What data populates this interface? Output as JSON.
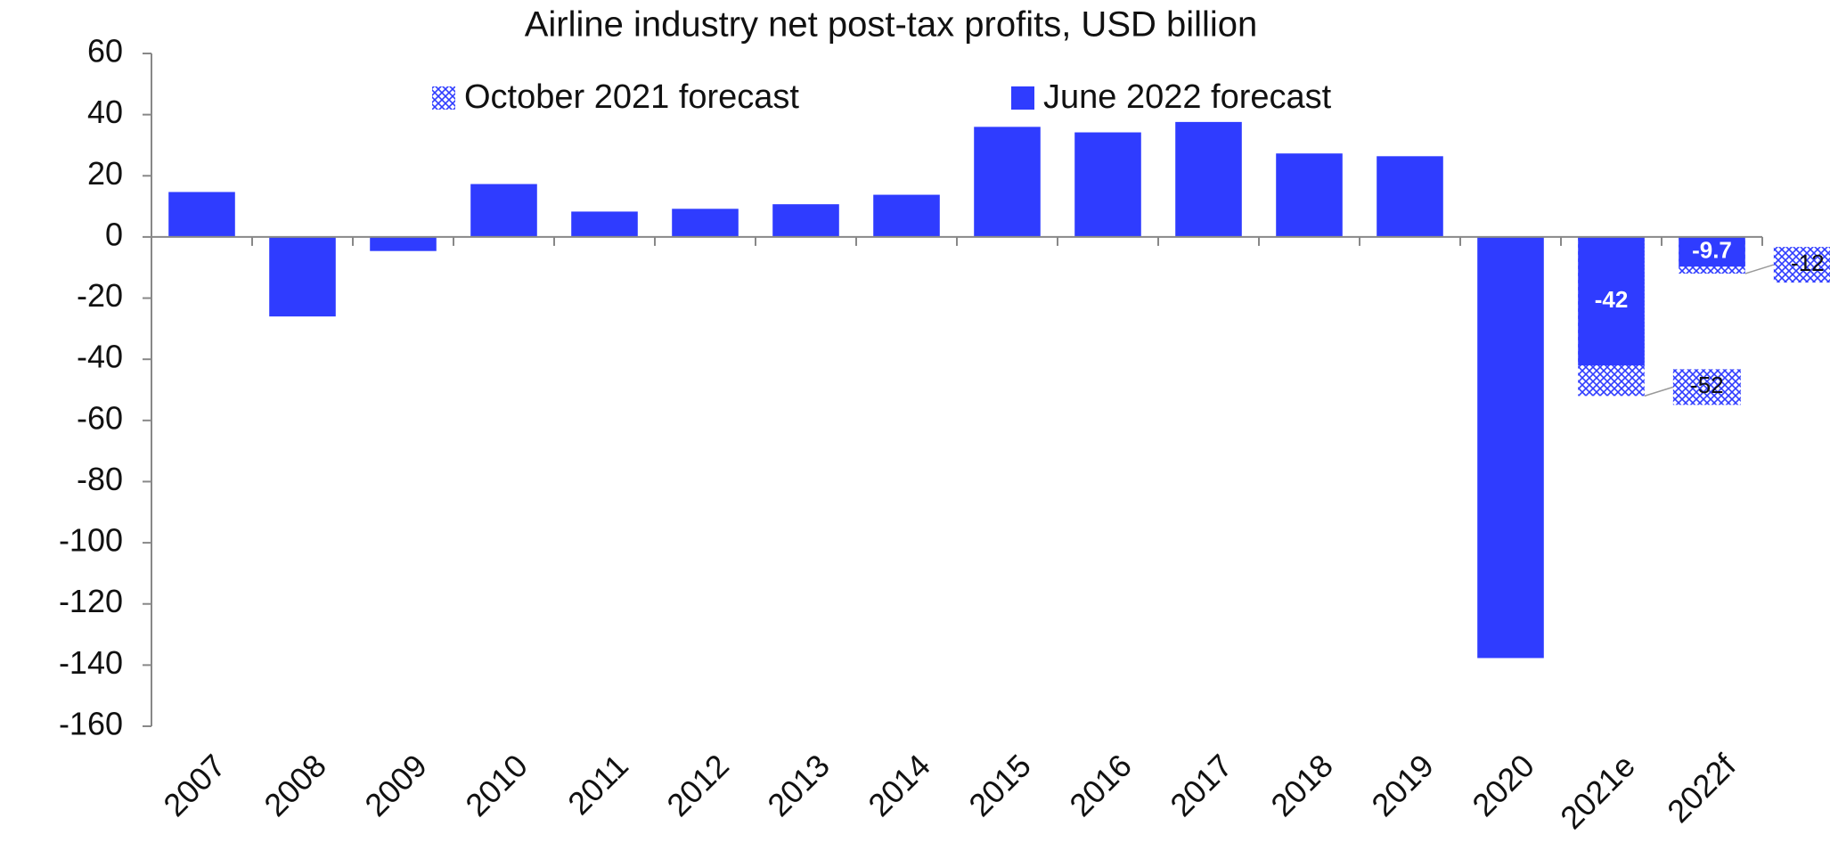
{
  "chart_data": {
    "type": "bar",
    "title": "Airline industry net post-tax profits, USD billion",
    "categories": [
      "2007",
      "2008",
      "2009",
      "2010",
      "2011",
      "2012",
      "2013",
      "2014",
      "2015",
      "2016",
      "2017",
      "2018",
      "2019",
      "2020",
      "2021e",
      "2022f"
    ],
    "series": [
      {
        "name": "October 2021 forecast",
        "color": "#2f3cff",
        "hatched": true,
        "values": [
          null,
          null,
          null,
          null,
          null,
          null,
          null,
          null,
          null,
          null,
          null,
          null,
          null,
          null,
          -52,
          -12
        ]
      },
      {
        "name": "June 2022 forecast",
        "color": "#2f3cff",
        "values": [
          14.7,
          -26,
          -4.6,
          17.3,
          8.3,
          9.2,
          10.7,
          13.8,
          36,
          34.2,
          37.6,
          27.3,
          26.4,
          -137.7,
          -42,
          -9.7
        ]
      }
    ],
    "ylim": [
      -160,
      60
    ],
    "yticks": [
      -160,
      -140,
      -120,
      -100,
      -80,
      -60,
      -40,
      -20,
      0,
      20,
      40,
      60
    ],
    "grid": false
  }
}
